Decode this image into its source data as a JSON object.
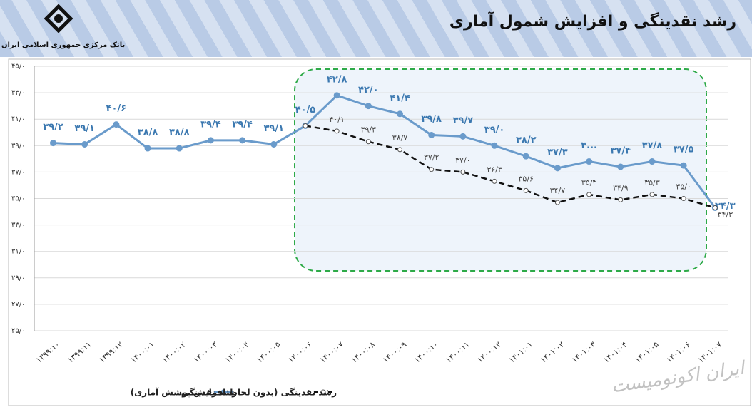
{
  "chart_data": {
    "type": "line",
    "title": "رشد نقدینگی و افزایش شمول آماری",
    "subtitle": "بانک مرکزی جمهوری اسلامی ایران",
    "watermark": "ایران اکونومیست",
    "categories": [
      "۱۳۹۹:۱۰",
      "۱۳۹۹:۱۱",
      "۱۳۹۹:۱۲",
      "۱۴۰۰:۰۱",
      "۱۴۰۰:۰۲",
      "۱۴۰۰:۰۳",
      "۱۴۰۰:۰۴",
      "۱۴۰۰:۰۵",
      "۱۴۰۰:۰۶",
      "۱۴۰۰:۰۷",
      "۱۴۰۰:۰۸",
      "۱۴۰۰:۰۹",
      "۱۴۰۰:۱۰",
      "۱۴۰۰:۱۱",
      "۱۴۰۰:۱۲",
      "۱۴۰۱:۰۱",
      "۱۴۰۱:۰۲",
      "۱۴۰۱:۰۳",
      "۱۴۰۱:۰۴",
      "۱۴۰۱:۰۵",
      "۱۴۰۱:۰۶",
      "۱۴۰۱:۰۷"
    ],
    "series": [
      {
        "name": "رشد نقدینگی",
        "color": "#6a9bcb",
        "dash": false,
        "values": [
          39.2,
          39.1,
          40.6,
          38.8,
          38.8,
          39.4,
          39.4,
          39.1,
          40.5,
          42.8,
          42.0,
          41.4,
          39.8,
          39.7,
          39.0,
          38.2,
          37.3,
          37.8,
          37.4,
          37.8,
          37.5,
          34.3
        ],
        "value_labels": [
          "۳۹/۲",
          "۳۹/۱",
          "۴۰/۶",
          "۳۸/۸",
          "۳۸/۸",
          "۳۹/۴",
          "۳۹/۴",
          "۳۹/۱",
          "۴۰/۵",
          "۴۲/۸",
          "۴۲/۰",
          "۴۱/۴",
          "۳۹/۸",
          "۳۹/۷",
          "۳۹/۰",
          "۳۸/۲",
          "۳۷/۳",
          "۳...",
          "۳۷/۴",
          "۳۷/۸",
          "۳۷/۵",
          "۳۴/۳"
        ]
      },
      {
        "name": "رشد نقدینگی (بدون لحاظ افزایش پوشش آماری)",
        "color": "#111111",
        "dash": true,
        "values": [
          null,
          null,
          null,
          null,
          null,
          null,
          null,
          null,
          40.5,
          40.1,
          39.3,
          38.7,
          37.2,
          37.0,
          36.3,
          35.6,
          34.7,
          35.3,
          34.9,
          35.3,
          35.0,
          34.3
        ],
        "value_labels": [
          null,
          null,
          null,
          null,
          null,
          null,
          null,
          null,
          null,
          "۴۰/۱",
          "۳۹/۳",
          "۳۸/۷",
          "۳۷/۲",
          "۳۷/۰",
          "۳۶/۳",
          "۳۵/۶",
          "۳۴/۷",
          "۳۵/۳",
          "۳۴/۹",
          "۳۵/۳",
          "۳۵/۰",
          "۳۴/۳"
        ]
      }
    ],
    "ylim": [
      25,
      45
    ],
    "yticks": [
      {
        "value": 25,
        "label": "۲۵/۰"
      },
      {
        "value": 27,
        "label": "۲۷/۰"
      },
      {
        "value": 29,
        "label": "۲۹/۰"
      },
      {
        "value": 31,
        "label": "۳۱/۰"
      },
      {
        "value": 33,
        "label": "۳۳/۰"
      },
      {
        "value": 35,
        "label": "۳۵/۰"
      },
      {
        "value": 37,
        "label": "۳۷/۰"
      },
      {
        "value": 39,
        "label": "۳۹/۰"
      },
      {
        "value": 41,
        "label": "۴۱/۰"
      },
      {
        "value": 43,
        "label": "۴۳/۰"
      },
      {
        "value": 45,
        "label": "۴۵/۰"
      }
    ],
    "grid": true
  }
}
